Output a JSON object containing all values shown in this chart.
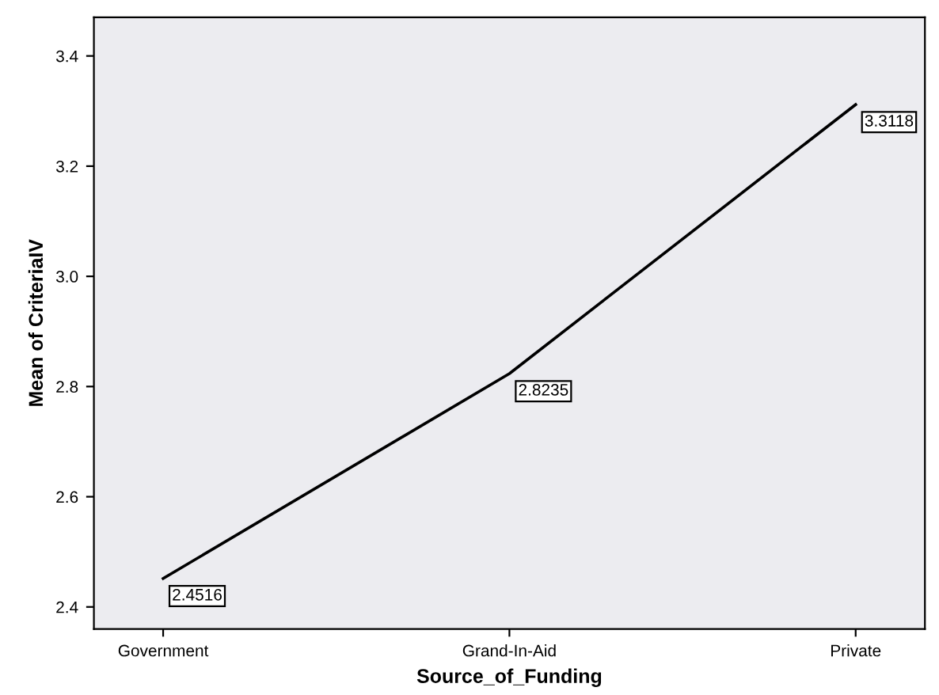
{
  "chart_data": {
    "type": "line",
    "xlabel": "Source_of_Funding",
    "ylabel": "Mean of CriteriaIV",
    "categories": [
      "Government",
      "Grand-In-Aid",
      "Private"
    ],
    "series": [
      {
        "color": "#000000",
        "values": [
          2.4516,
          2.8235,
          3.3118
        ]
      }
    ],
    "ylim": [
      2.36,
      3.47
    ],
    "yticks": [
      2.4,
      2.6,
      2.8,
      {
        "value": 3,
        "label": "3.0"
      },
      3.2,
      3.4
    ],
    "grid": false,
    "legend": false,
    "marker": "none",
    "line_style": "solid",
    "data_labels": true
  }
}
